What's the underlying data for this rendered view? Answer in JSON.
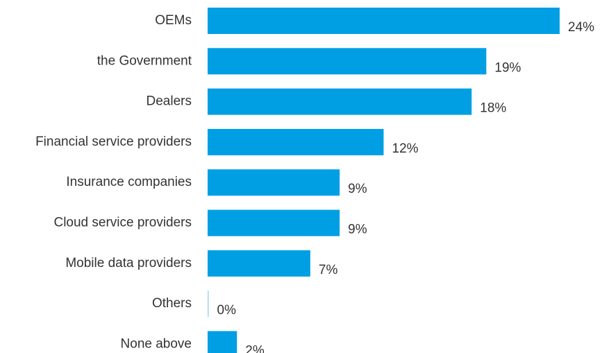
{
  "chart_data": {
    "type": "bar",
    "orientation": "horizontal",
    "categories": [
      "OEMs",
      "the Government",
      "Dealers",
      "Financial service providers",
      "Insurance companies",
      "Cloud service providers",
      "Mobile data providers",
      "Others",
      "None above"
    ],
    "values": [
      24,
      19,
      18,
      12,
      9,
      9,
      7,
      0,
      2
    ],
    "value_labels": [
      "24%",
      "19%",
      "18%",
      "12%",
      "9%",
      "9%",
      "7%",
      "0%",
      "2%"
    ],
    "unit": "%",
    "title": "",
    "xlabel": "",
    "ylabel": "",
    "xlim": [
      0,
      24
    ],
    "grid": false,
    "legend": "none",
    "bar_color": "#009fe3",
    "zero_line_color": "#9fd3ec"
  }
}
